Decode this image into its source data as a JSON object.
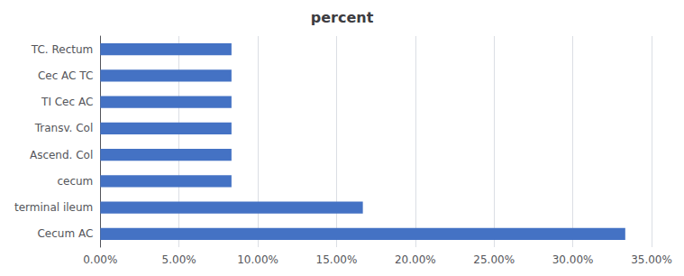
{
  "chart_data": {
    "type": "bar",
    "orientation": "horizontal",
    "title": "percent",
    "categories": [
      "Cecum AC",
      "terminal ileum",
      "cecum",
      "Ascend. Col",
      "Transv. Col",
      "TI Cec AC",
      "Cec AC TC",
      "TC. Rectum"
    ],
    "values": [
      0.3333,
      0.1667,
      0.0833,
      0.0833,
      0.0833,
      0.0833,
      0.0833,
      0.0833
    ],
    "color": "#4472C4",
    "xlim": [
      0,
      0.35
    ],
    "xticks": [
      {
        "value": 0.0,
        "label": "0.00%"
      },
      {
        "value": 0.05,
        "label": "5.00%"
      },
      {
        "value": 0.1,
        "label": "10.00%"
      },
      {
        "value": 0.15,
        "label": "15.00%"
      },
      {
        "value": 0.2,
        "label": "20.00%"
      },
      {
        "value": 0.25,
        "label": "25.00%"
      },
      {
        "value": 0.3,
        "label": "30.00%"
      },
      {
        "value": 0.35,
        "label": "35.00%"
      }
    ],
    "grid": true
  }
}
